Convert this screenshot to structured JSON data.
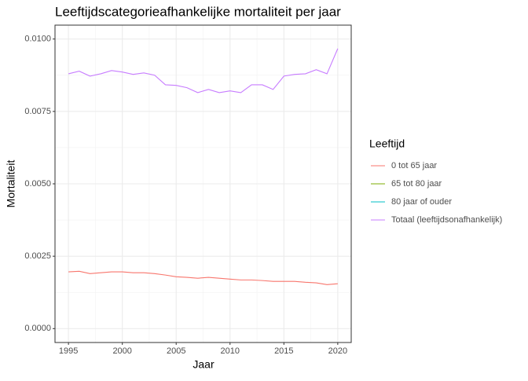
{
  "chart_data": {
    "type": "line",
    "title": "Leeftijdscategorieafhankelijke mortaliteit per jaar",
    "xlabel": "Jaar",
    "ylabel": "Mortaliteit",
    "legend_title": "Leeftijd",
    "legend": "right",
    "grid": true,
    "x": [
      1995,
      1996,
      1997,
      1998,
      1999,
      2000,
      2001,
      2002,
      2003,
      2004,
      2005,
      2006,
      2007,
      2008,
      2009,
      2010,
      2011,
      2012,
      2013,
      2014,
      2015,
      2016,
      2017,
      2018,
      2019,
      2020
    ],
    "series": [
      {
        "name": "0 tot 65 jaar",
        "color": "#F8766D",
        "values": [
          0.00196,
          0.00198,
          0.0019,
          0.00193,
          0.00196,
          0.00196,
          0.00193,
          0.00193,
          0.0019,
          0.00185,
          0.00179,
          0.00177,
          0.00174,
          0.00177,
          0.00174,
          0.00171,
          0.00168,
          0.00168,
          0.00166,
          0.00163,
          0.00163,
          0.00163,
          0.0016,
          0.00158,
          0.00152,
          0.00155
        ]
      },
      {
        "name": "65 tot 80 jaar",
        "color": "#7CAE00",
        "values": [
          null,
          null,
          null,
          null,
          null,
          null,
          null,
          null,
          null,
          null,
          null,
          null,
          null,
          null,
          null,
          null,
          null,
          null,
          null,
          null,
          null,
          null,
          null,
          null,
          null,
          null
        ]
      },
      {
        "name": "80 jaar of ouder",
        "color": "#00BFC4",
        "values": [
          null,
          null,
          null,
          null,
          null,
          null,
          null,
          null,
          null,
          null,
          null,
          null,
          null,
          null,
          null,
          null,
          null,
          null,
          null,
          null,
          null,
          null,
          null,
          null,
          null,
          null
        ]
      },
      {
        "name": "Totaal (leeftijdsonafhankelijk)",
        "color": "#C77CFF",
        "values": [
          0.0088,
          0.00889,
          0.00872,
          0.0088,
          0.00891,
          0.00886,
          0.00878,
          0.00883,
          0.00875,
          0.00842,
          0.0084,
          0.00832,
          0.00815,
          0.00826,
          0.00815,
          0.00821,
          0.00815,
          0.00842,
          0.00842,
          0.00826,
          0.00872,
          0.00878,
          0.0088,
          0.00894,
          0.0088,
          0.00967
        ]
      }
    ],
    "xlim": [
      1993.75,
      2021.25
    ],
    "xticks": [
      1995,
      2000,
      2005,
      2010,
      2015,
      2020
    ],
    "ylim": [
      -0.00048,
      0.01048
    ],
    "yticks": [
      {
        "value": 0,
        "label": "0.0000"
      },
      {
        "value": 0.0025,
        "label": "0.0025"
      },
      {
        "value": 0.005,
        "label": "0.0050"
      },
      {
        "value": 0.0075,
        "label": "0.0075"
      },
      {
        "value": 0.01,
        "label": "0.0100"
      }
    ]
  }
}
